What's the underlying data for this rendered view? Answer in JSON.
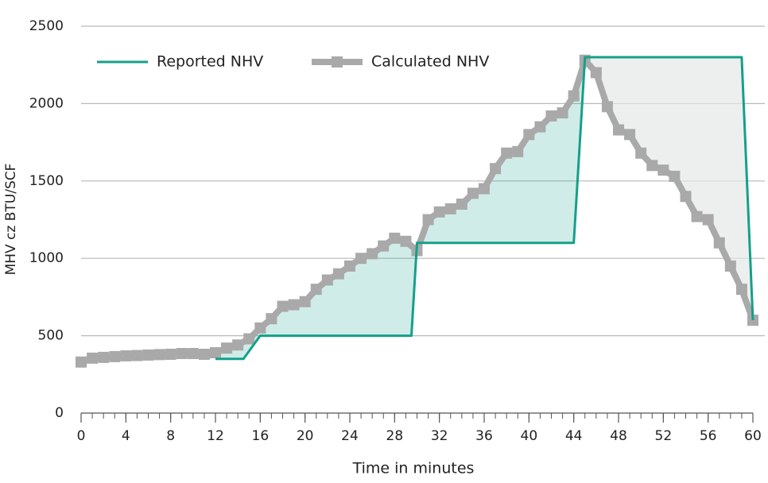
{
  "chart_data": {
    "type": "line",
    "x_label": "Time in minutes",
    "y_label": "MHV cz BTU/SCF",
    "xlim": [
      0,
      60
    ],
    "xticks": [
      0,
      4,
      8,
      12,
      16,
      20,
      24,
      28,
      32,
      36,
      40,
      44,
      48,
      52,
      56,
      60
    ],
    "x_minor_ticks": [
      0,
      1,
      2,
      3,
      4,
      5,
      6,
      7,
      8,
      9,
      10,
      11,
      12,
      13,
      14,
      15,
      16,
      17,
      18,
      19,
      20,
      21,
      22,
      23,
      24,
      25,
      26,
      27,
      28,
      29,
      30,
      31,
      32,
      33,
      34,
      35,
      36,
      37,
      38,
      39,
      40,
      41,
      42,
      43,
      44,
      45,
      46,
      47,
      48,
      49,
      50,
      51,
      52,
      53,
      54,
      55,
      56,
      57,
      58,
      59,
      60
    ],
    "ylim": [
      0,
      2500
    ],
    "yticks": [
      0,
      500,
      1000,
      1500,
      2000,
      2500
    ],
    "grid": true,
    "legend": "top-left",
    "series": [
      {
        "name": "Reported NHV",
        "color": "#14a08a",
        "x": [
          12,
          14.5,
          16,
          29.5,
          30,
          44,
          45,
          59,
          60
        ],
        "values": [
          350,
          350,
          500,
          500,
          1100,
          1100,
          2300,
          2300,
          600
        ]
      },
      {
        "name": "Calculated NHV",
        "color": "#a9a9a9",
        "x": [
          0,
          1,
          2,
          3,
          4,
          5,
          6,
          7,
          8,
          9,
          10,
          11,
          12,
          13,
          14,
          15,
          16,
          17,
          18,
          19,
          20,
          21,
          22,
          23,
          24,
          25,
          26,
          27,
          28,
          29,
          30,
          31,
          32,
          33,
          34,
          35,
          36,
          37,
          38,
          39,
          40,
          41,
          42,
          43,
          44,
          45,
          46,
          47,
          48,
          49,
          50,
          51,
          52,
          53,
          54,
          55,
          56,
          57,
          58,
          59,
          60
        ],
        "values": [
          330,
          355,
          360,
          365,
          370,
          372,
          375,
          378,
          380,
          385,
          385,
          380,
          390,
          420,
          440,
          480,
          550,
          610,
          690,
          700,
          720,
          800,
          860,
          900,
          950,
          1000,
          1030,
          1080,
          1130,
          1110,
          1050,
          1250,
          1300,
          1320,
          1350,
          1420,
          1450,
          1580,
          1680,
          1690,
          1800,
          1850,
          1920,
          1940,
          2050,
          2280,
          2200,
          1980,
          1830,
          1800,
          1680,
          1600,
          1570,
          1530,
          1400,
          1270,
          1250,
          1100,
          950,
          800,
          600
        ]
      }
    ]
  }
}
